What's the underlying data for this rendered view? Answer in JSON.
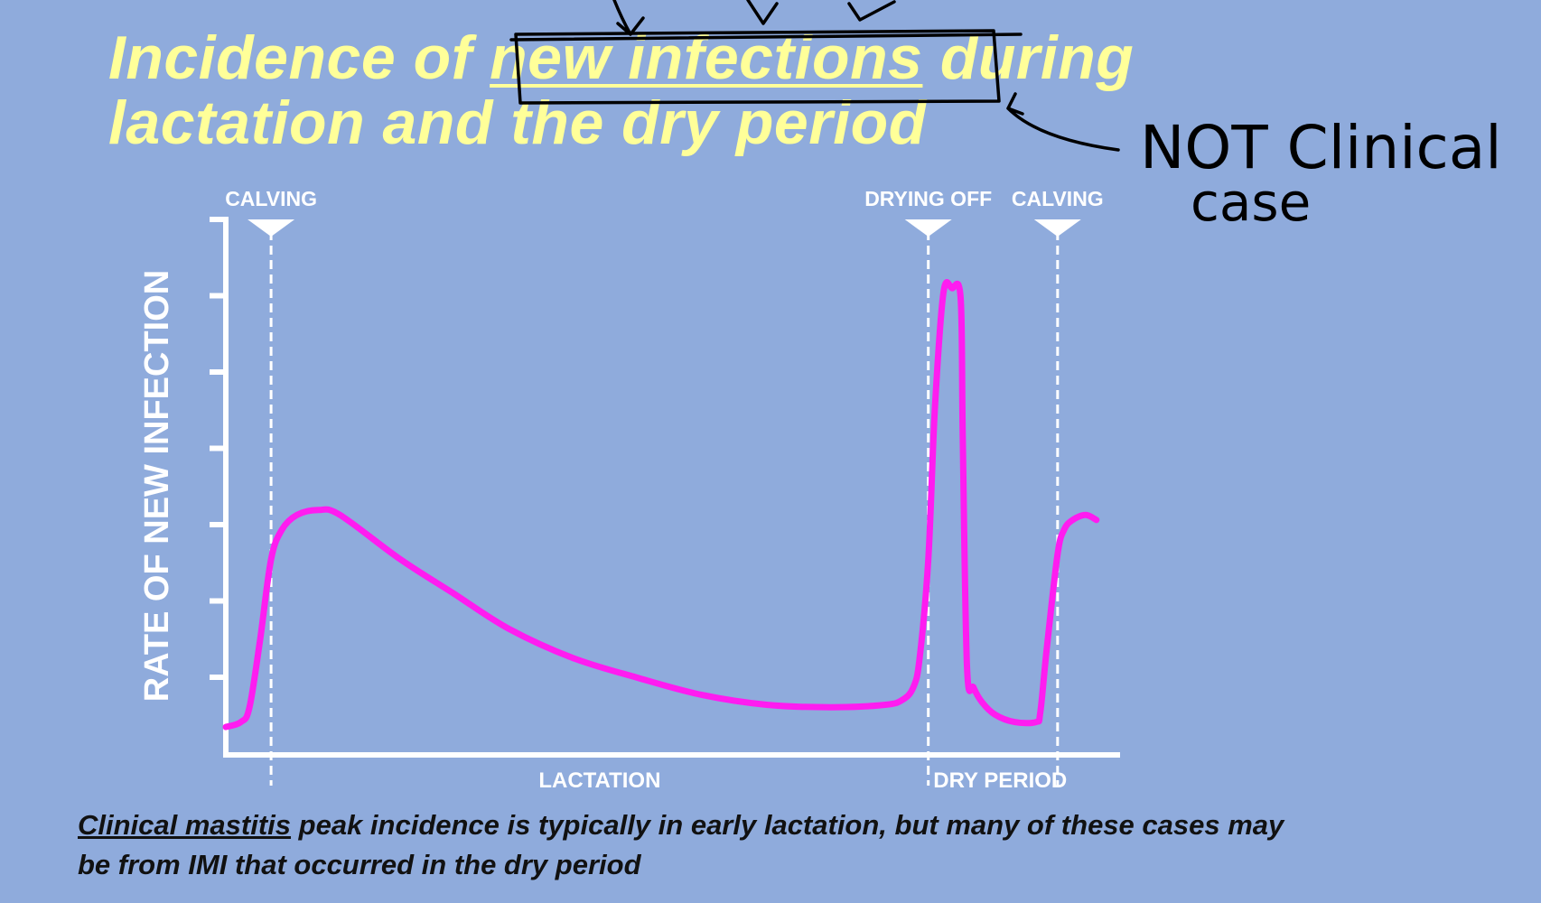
{
  "title": {
    "pre": "Incidence of ",
    "underlined": "new infections",
    "post": " during",
    "line2": "lactation and the dry period"
  },
  "annotations": {
    "handwritten_line1": "NOT Clinical",
    "handwritten_line2": "case"
  },
  "caption": {
    "underlined": "Clinical mastitis",
    "rest_line1": " peak incidence is typically in early lactation, but many of these cases may",
    "line2": "be from IMI that occurred in the dry period"
  },
  "colors": {
    "background": "#8fabdc",
    "title": "#ffff99",
    "curve": "#ff1cf0",
    "axis": "#ffffff",
    "ink": "#000000"
  },
  "chart_data": {
    "type": "line",
    "title": "",
    "xlabel": "",
    "ylabel": "RATE OF NEW INFECTION",
    "grid": false,
    "y_ticks": 7,
    "ticks_labeled": false,
    "markers": [
      {
        "label": "CALVING",
        "x": 0
      },
      {
        "label": "DRYING OFF",
        "x": 305
      },
      {
        "label": "CALVING",
        "x": 365
      }
    ],
    "phases": [
      {
        "label": "LACTATION",
        "from": 0,
        "to": 305
      },
      {
        "label": "DRY PERIOD",
        "from": 305,
        "to": 365
      }
    ],
    "xlim": [
      -21,
      394
    ],
    "ylim": [
      0,
      100
    ],
    "series": [
      {
        "values_x": [
          -21,
          -14,
          -10,
          -5,
          0,
          5,
          12,
          22,
          32,
          60,
          85,
          110,
          140,
          170,
          200,
          230,
          260,
          285,
          293,
          298,
          301,
          305,
          308,
          312,
          316,
          320,
          321,
          323,
          326,
          330,
          336,
          345,
          355,
          357,
          360,
          365,
          368,
          372,
          378,
          383
        ],
        "values_y": [
          2,
          3,
          6,
          20,
          36,
          42,
          45,
          46,
          45,
          36,
          29,
          22,
          16,
          12,
          8.5,
          6.5,
          6,
          6.5,
          7.5,
          10,
          16,
          36,
          66,
          90,
          91,
          89,
          60,
          14,
          10,
          7,
          4.5,
          3,
          3,
          5,
          18,
          37,
          42,
          44,
          45,
          44
        ]
      }
    ]
  }
}
